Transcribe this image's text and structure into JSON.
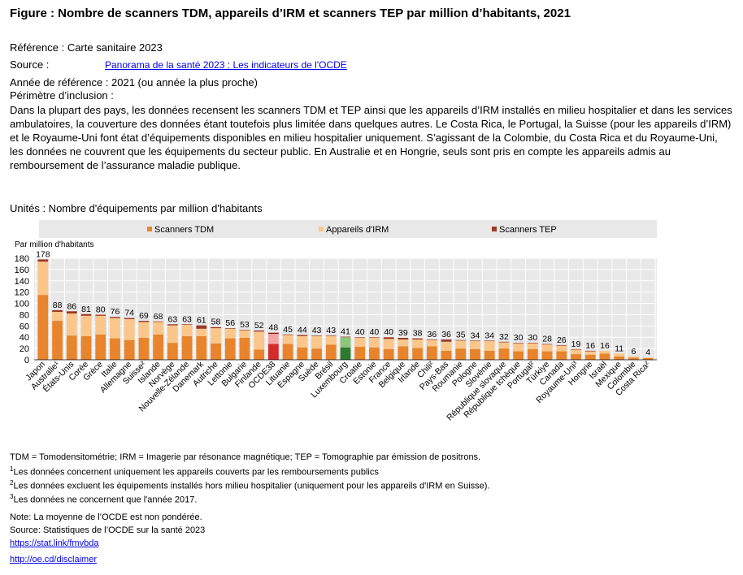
{
  "title": "Figure : Nombre de scanners TDM, appareils d’IRM et scanners TEP par million d’habitants, 2021",
  "reference": "Référence : Carte sanitaire 2023",
  "source_label": "Source :",
  "source_link": "Panorama de la santé 2023 : Les indicateurs de l'OCDE",
  "reference_year": "Année de référence : 2021 (ou année la plus proche)",
  "scope_label": "Périmètre d’inclusion :",
  "scope_text": "Dans la plupart des pays, les données recensent les scanners TDM et TEP ainsi que les appareils d’IRM installés en milieu hospitalier et dans les services ambulatoires, la couverture des données étant toutefois plus limitée dans quelques autres. Le Costa Rica, le Portugal, la Suisse (pour les appareils d’IRM) et le Royaume-Uni font état d’équipements disponibles en milieu hospitalier uniquement. S’agissant de la Colombie, du Costa Rica et du Royaume-Uni, les données ne couvrent que les équipements du secteur public. En Australie et en Hongrie, seuls sont pris en compte les appareils admis au remboursement de l’assurance maladie publique.",
  "units": "Unités : Nombre d'équipements par million d'habitants",
  "colors": {
    "ct": "#e8842b",
    "mri": "#fbc68a",
    "pet": "#9b3a26",
    "oecd_ct": "#d42a2a",
    "oecd_mri": "#f4a3a3",
    "oecd_pet": "#8e1414",
    "lux_ct": "#2f7a2e",
    "lux_mri": "#8cc47a",
    "legend_bg": "#e8e8e8",
    "grid": "#ffffff",
    "plot_bg": "#e8e8e8"
  },
  "chart_data": {
    "type": "bar",
    "stacked": true,
    "ylabel": "Par million d'habitants",
    "ylim": [
      0,
      180
    ],
    "yticks": [
      "0",
      "20",
      "40",
      "60",
      "80",
      "100",
      "120",
      "140",
      "160",
      "180"
    ],
    "legend_position": "top",
    "categories": [
      "Japon",
      "Australie¹",
      "États-Unis",
      "Corée",
      "Grèce",
      "Italie",
      "Allemagne",
      "Suisse²",
      "Islande",
      "Norvège",
      "Nouvelle-Zélande",
      "Danemark",
      "Autriche",
      "Lettonie",
      "Bulgarie",
      "Finlande",
      "OCDE38",
      "Lituanie",
      "Espagne",
      "Suède",
      "Brésil",
      "Luxembourg",
      "Croatie",
      "Estonie",
      "France",
      "Belgique",
      "Irlande",
      "Chili²",
      "Pays-Bas",
      "Roumanie",
      "Pologne",
      "Slovénie",
      "République slovaque",
      "République tchèque",
      "Portugal²",
      "Türkiye",
      "Canada",
      "Royaume-Uni³",
      "Hongrie",
      "Israël",
      "Mexique",
      "Colombie",
      "Costa Rica²"
    ],
    "totals": [
      178,
      88,
      86,
      81,
      80,
      76,
      74,
      69,
      68,
      63,
      63,
      61,
      58,
      56,
      53,
      52,
      48,
      45,
      44,
      43,
      43,
      41,
      40,
      40,
      40,
      39,
      38,
      36,
      36,
      35,
      34,
      34,
      32,
      30,
      30,
      28,
      26,
      19,
      16,
      16,
      11,
      6,
      4
    ],
    "series": [
      {
        "name": "Scanners TDM",
        "values": [
          115,
          69,
          43,
          42,
          45,
          38,
          35,
          39,
          45,
          30,
          42,
          42,
          29,
          38,
          39,
          18,
          28,
          28,
          22,
          20,
          27,
          22,
          23,
          22,
          19,
          24,
          21,
          24,
          16,
          20,
          19,
          16,
          20,
          15,
          19,
          15,
          15,
          10,
          9,
          11,
          6,
          4,
          3
        ]
      },
      {
        "name": "Appareils d'IRM",
        "values": [
          59,
          16,
          39,
          36,
          33,
          36,
          37,
          28,
          22,
          31,
          20,
          13,
          27,
          17,
          13,
          32,
          18,
          16,
          20,
          22,
          15,
          18,
          16,
          17,
          18,
          12,
          15,
          11,
          16,
          14,
          14,
          17,
          11,
          14,
          10,
          12,
          10,
          8,
          6,
          5,
          5,
          2,
          1
        ]
      },
      {
        "name": "Scanners TEP",
        "values": [
          4,
          3,
          4,
          3,
          2,
          2,
          2,
          2,
          1,
          2,
          1,
          6,
          2,
          1,
          1,
          2,
          2,
          1,
          2,
          1,
          1,
          1,
          1,
          1,
          3,
          3,
          2,
          1,
          4,
          1,
          1,
          1,
          1,
          1,
          1,
          1,
          1,
          1,
          1,
          0,
          0,
          0,
          0
        ]
      }
    ]
  },
  "footnotes": {
    "abbrev": "TDM = Tomodensitométrie; IRM = Imagerie par résonance magnétique; TEP = Tomographie par émission de positrons.",
    "n1_mark": "1",
    "n1": "Les données concernent uniquement les appareils couverts par les remboursements publics",
    "n2_mark": "2",
    "n2": "Les données excluent les équipements installés hors milieu hospitalier (uniquement pour les appareils d'IRM en Suisse).",
    "n3_mark": "3",
    "n3": "Les données ne concernent que l'année 2017.",
    "note": "Note: La moyenne de l’OCDE est non pondérée.",
    "source": "Source: Statistiques de l’OCDE sur la santé 2023",
    "link1": "https://stat.link/fmvbda",
    "link2": "http://oe.cd/disclaimer"
  }
}
